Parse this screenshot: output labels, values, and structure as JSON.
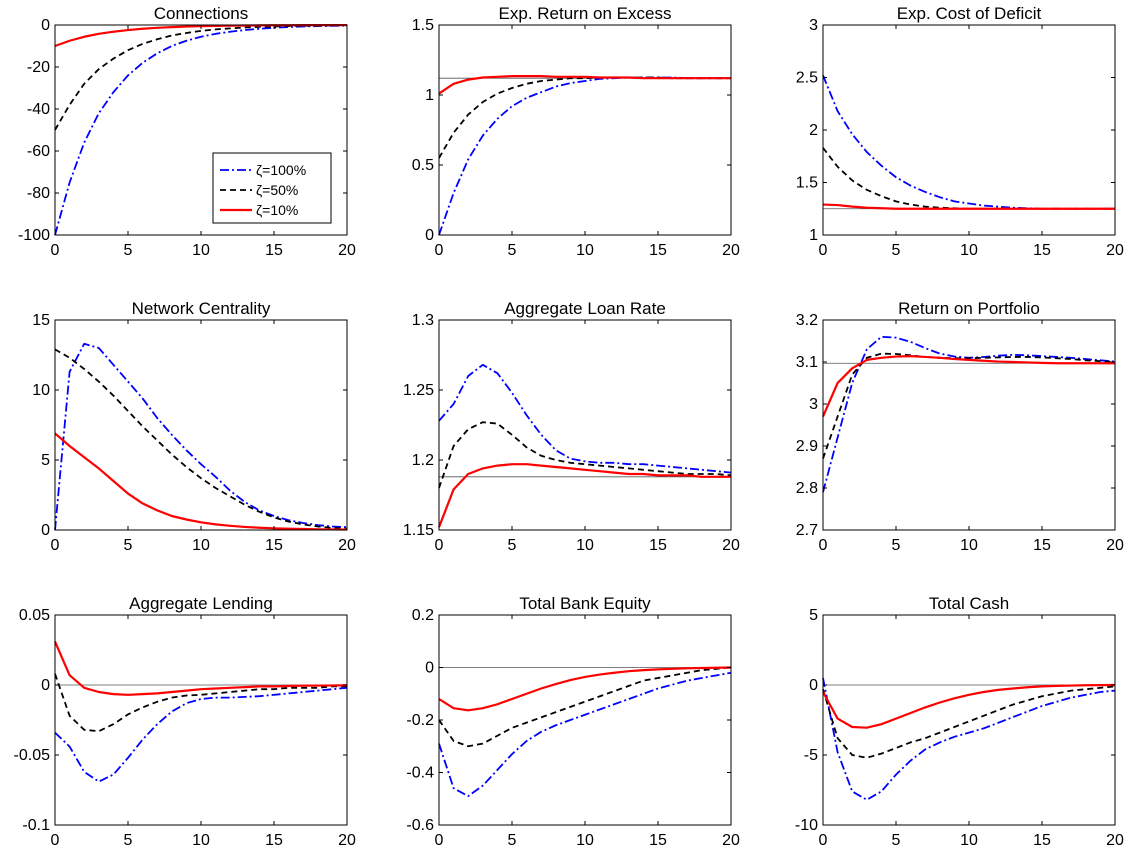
{
  "legend": {
    "entries": [
      {
        "label": "ζ=100%",
        "color": "#0000ff",
        "style": "dash-dot"
      },
      {
        "label": "ζ=50%",
        "color": "#000000",
        "style": "dashed"
      },
      {
        "label": "ζ=10%",
        "color": "#ff0000",
        "style": "solid"
      }
    ]
  },
  "chart_data": [
    {
      "type": "line",
      "title": "Connections",
      "x": [
        0,
        1,
        2,
        3,
        4,
        5,
        6,
        7,
        8,
        9,
        10,
        11,
        12,
        13,
        14,
        15,
        16,
        17,
        18,
        19,
        20
      ],
      "xlim": [
        0,
        20
      ],
      "ylim": [
        -100,
        0
      ],
      "xticks": [
        0,
        5,
        10,
        15,
        20
      ],
      "yticks": [
        -100,
        -80,
        -60,
        -40,
        -20,
        0
      ],
      "baseline": 0,
      "series": [
        {
          "name": "ζ=100%",
          "values": [
            -100,
            -75,
            -56,
            -42,
            -32,
            -24,
            -18,
            -13.5,
            -10,
            -7.5,
            -5.6,
            -4.2,
            -3.2,
            -2.4,
            -1.8,
            -1.3,
            -1.0,
            -0.7,
            -0.5,
            -0.4,
            -0.3
          ]
        },
        {
          "name": "ζ=50%",
          "values": [
            -50,
            -38,
            -28,
            -21,
            -16,
            -12,
            -9,
            -6.8,
            -5,
            -3.8,
            -2.8,
            -2.1,
            -1.6,
            -1.2,
            -0.9,
            -0.7,
            -0.5,
            -0.4,
            -0.3,
            -0.2,
            -0.1
          ]
        },
        {
          "name": "ζ=10%",
          "values": [
            -10,
            -7.5,
            -5.6,
            -4.2,
            -3.2,
            -2.4,
            -1.8,
            -1.35,
            -1,
            -0.75,
            -0.56,
            -0.42,
            -0.32,
            -0.24,
            -0.18,
            -0.13,
            -0.1,
            -0.07,
            -0.05,
            -0.04,
            -0.03
          ]
        }
      ]
    },
    {
      "type": "line",
      "title": "Exp. Return on Excess",
      "x": [
        0,
        1,
        2,
        3,
        4,
        5,
        6,
        7,
        8,
        9,
        10,
        11,
        12,
        13,
        14,
        15,
        16,
        17,
        18,
        19,
        20
      ],
      "xlim": [
        0,
        20
      ],
      "ylim": [
        0,
        1.5
      ],
      "xticks": [
        0,
        5,
        10,
        15,
        20
      ],
      "yticks": [
        0,
        0.5,
        1,
        1.5
      ],
      "baseline": 1.12,
      "series": [
        {
          "name": "ζ=100%",
          "values": [
            0,
            0.3,
            0.54,
            0.71,
            0.83,
            0.92,
            0.98,
            1.02,
            1.06,
            1.085,
            1.1,
            1.115,
            1.12,
            1.125,
            1.125,
            1.125,
            1.125,
            1.12,
            1.12,
            1.12,
            1.12
          ]
        },
        {
          "name": "ζ=50%",
          "values": [
            0.55,
            0.73,
            0.86,
            0.95,
            1.01,
            1.05,
            1.08,
            1.1,
            1.11,
            1.12,
            1.12,
            1.125,
            1.125,
            1.125,
            1.125,
            1.125,
            1.12,
            1.12,
            1.12,
            1.12,
            1.12
          ]
        },
        {
          "name": "ζ=10%",
          "values": [
            1.01,
            1.08,
            1.11,
            1.125,
            1.13,
            1.135,
            1.135,
            1.135,
            1.13,
            1.13,
            1.13,
            1.125,
            1.125,
            1.125,
            1.12,
            1.12,
            1.12,
            1.12,
            1.12,
            1.12,
            1.12
          ]
        }
      ]
    },
    {
      "type": "line",
      "title": "Exp. Cost of Deficit",
      "x": [
        0,
        1,
        2,
        3,
        4,
        5,
        6,
        7,
        8,
        9,
        10,
        11,
        12,
        13,
        14,
        15,
        16,
        17,
        18,
        19,
        20
      ],
      "xlim": [
        0,
        20
      ],
      "ylim": [
        1,
        3
      ],
      "xticks": [
        0,
        5,
        10,
        15,
        20
      ],
      "yticks": [
        1,
        1.5,
        2,
        2.5,
        3
      ],
      "baseline": 1.25,
      "series": [
        {
          "name": "ζ=100%",
          "values": [
            2.52,
            2.18,
            1.96,
            1.79,
            1.66,
            1.55,
            1.47,
            1.41,
            1.36,
            1.32,
            1.3,
            1.28,
            1.27,
            1.26,
            1.255,
            1.25,
            1.25,
            1.25,
            1.25,
            1.25,
            1.25
          ]
        },
        {
          "name": "ζ=50%",
          "values": [
            1.83,
            1.65,
            1.52,
            1.43,
            1.37,
            1.32,
            1.29,
            1.27,
            1.26,
            1.255,
            1.25,
            1.25,
            1.25,
            1.25,
            1.25,
            1.25,
            1.25,
            1.25,
            1.25,
            1.25,
            1.25
          ]
        },
        {
          "name": "ζ=10%",
          "values": [
            1.29,
            1.285,
            1.27,
            1.26,
            1.255,
            1.25,
            1.25,
            1.25,
            1.25,
            1.25,
            1.25,
            1.25,
            1.25,
            1.25,
            1.25,
            1.25,
            1.25,
            1.25,
            1.25,
            1.25,
            1.25
          ]
        }
      ]
    },
    {
      "type": "line",
      "title": "Network Centrality",
      "x": [
        0,
        1,
        2,
        3,
        4,
        5,
        6,
        7,
        8,
        9,
        10,
        11,
        12,
        13,
        14,
        15,
        16,
        17,
        18,
        19,
        20
      ],
      "xlim": [
        0,
        20
      ],
      "ylim": [
        0,
        15
      ],
      "xticks": [
        0,
        5,
        10,
        15,
        20
      ],
      "yticks": [
        0,
        5,
        10,
        15
      ],
      "baseline": 0,
      "series": [
        {
          "name": "ζ=100%",
          "values": [
            0,
            11.3,
            13.3,
            13.0,
            11.8,
            10.6,
            9.4,
            8.0,
            6.8,
            5.7,
            4.7,
            3.8,
            2.8,
            2.0,
            1.4,
            1.0,
            0.7,
            0.5,
            0.35,
            0.25,
            0.2
          ]
        },
        {
          "name": "ζ=50%",
          "values": [
            12.9,
            12.3,
            11.5,
            10.6,
            9.6,
            8.5,
            7.4,
            6.4,
            5.4,
            4.5,
            3.7,
            3.0,
            2.4,
            1.8,
            1.3,
            0.9,
            0.6,
            0.4,
            0.25,
            0.15,
            0.1
          ]
        },
        {
          "name": "ζ=10%",
          "values": [
            6.9,
            6.0,
            5.2,
            4.4,
            3.5,
            2.6,
            1.9,
            1.4,
            1.0,
            0.75,
            0.55,
            0.4,
            0.3,
            0.22,
            0.16,
            0.12,
            0.09,
            0.07,
            0.05,
            0.04,
            0.03
          ]
        }
      ]
    },
    {
      "type": "line",
      "title": "Aggregate Loan Rate",
      "x": [
        0,
        1,
        2,
        3,
        4,
        5,
        6,
        7,
        8,
        9,
        10,
        11,
        12,
        13,
        14,
        15,
        16,
        17,
        18,
        19,
        20
      ],
      "xlim": [
        0,
        20
      ],
      "ylim": [
        1.15,
        1.3
      ],
      "xticks": [
        0,
        5,
        10,
        15,
        20
      ],
      "yticks": [
        1.15,
        1.2,
        1.25,
        1.3
      ],
      "baseline": 1.188,
      "series": [
        {
          "name": "ζ=100%",
          "values": [
            1.228,
            1.24,
            1.26,
            1.268,
            1.262,
            1.248,
            1.232,
            1.218,
            1.207,
            1.201,
            1.199,
            1.198,
            1.198,
            1.197,
            1.197,
            1.196,
            1.195,
            1.194,
            1.193,
            1.192,
            1.191
          ]
        },
        {
          "name": "ζ=50%",
          "values": [
            1.18,
            1.21,
            1.222,
            1.227,
            1.226,
            1.218,
            1.209,
            1.203,
            1.2,
            1.198,
            1.197,
            1.196,
            1.195,
            1.194,
            1.193,
            1.192,
            1.191,
            1.19,
            1.19,
            1.19,
            1.189
          ]
        },
        {
          "name": "ζ=10%",
          "values": [
            1.152,
            1.179,
            1.19,
            1.194,
            1.196,
            1.197,
            1.197,
            1.196,
            1.195,
            1.194,
            1.193,
            1.192,
            1.191,
            1.19,
            1.19,
            1.189,
            1.189,
            1.189,
            1.188,
            1.188,
            1.188
          ]
        }
      ]
    },
    {
      "type": "line",
      "title": "Return on Portfolio",
      "x": [
        0,
        1,
        2,
        3,
        4,
        5,
        6,
        7,
        8,
        9,
        10,
        11,
        12,
        13,
        14,
        15,
        16,
        17,
        18,
        19,
        20
      ],
      "xlim": [
        0,
        20
      ],
      "ylim": [
        2.7,
        3.2
      ],
      "xticks": [
        0,
        5,
        10,
        15,
        20
      ],
      "yticks": [
        2.7,
        2.8,
        2.9,
        3,
        3.1,
        3.2
      ],
      "baseline": 3.097,
      "series": [
        {
          "name": "ζ=100%",
          "values": [
            2.79,
            2.92,
            3.05,
            3.13,
            3.16,
            3.158,
            3.148,
            3.133,
            3.12,
            3.113,
            3.11,
            3.112,
            3.115,
            3.117,
            3.116,
            3.114,
            3.112,
            3.11,
            3.107,
            3.104,
            3.101
          ]
        },
        {
          "name": "ζ=50%",
          "values": [
            2.87,
            2.97,
            3.07,
            3.11,
            3.12,
            3.119,
            3.116,
            3.112,
            3.11,
            3.109,
            3.109,
            3.11,
            3.111,
            3.112,
            3.112,
            3.111,
            3.109,
            3.107,
            3.104,
            3.102,
            3.1
          ]
        },
        {
          "name": "ζ=10%",
          "values": [
            2.97,
            3.05,
            3.085,
            3.105,
            3.11,
            3.113,
            3.114,
            3.112,
            3.11,
            3.107,
            3.105,
            3.103,
            3.101,
            3.1,
            3.099,
            3.098,
            3.097,
            3.097,
            3.097,
            3.097,
            3.097
          ]
        }
      ]
    },
    {
      "type": "line",
      "title": "Aggregate Lending",
      "x": [
        0,
        1,
        2,
        3,
        4,
        5,
        6,
        7,
        8,
        9,
        10,
        11,
        12,
        13,
        14,
        15,
        16,
        17,
        18,
        19,
        20
      ],
      "xlim": [
        0,
        20
      ],
      "ylim": [
        -0.1,
        0.05
      ],
      "xticks": [
        0,
        5,
        10,
        15,
        20
      ],
      "yticks": [
        -0.1,
        -0.05,
        0,
        0.05
      ],
      "baseline": 0,
      "series": [
        {
          "name": "ζ=100%",
          "values": [
            -0.034,
            -0.044,
            -0.062,
            -0.069,
            -0.064,
            -0.052,
            -0.039,
            -0.028,
            -0.019,
            -0.013,
            -0.01,
            -0.009,
            -0.009,
            -0.0085,
            -0.008,
            -0.007,
            -0.006,
            -0.005,
            -0.004,
            -0.003,
            -0.002
          ]
        },
        {
          "name": "ζ=50%",
          "values": [
            0.008,
            -0.022,
            -0.032,
            -0.033,
            -0.028,
            -0.021,
            -0.016,
            -0.012,
            -0.009,
            -0.0075,
            -0.007,
            -0.006,
            -0.005,
            -0.004,
            -0.003,
            -0.003,
            -0.002,
            -0.002,
            -0.002,
            -0.001,
            -0.001
          ]
        },
        {
          "name": "ζ=10%",
          "values": [
            0.031,
            0.007,
            -0.002,
            -0.005,
            -0.0065,
            -0.007,
            -0.0065,
            -0.006,
            -0.005,
            -0.004,
            -0.003,
            -0.0025,
            -0.002,
            -0.0015,
            -0.001,
            -0.001,
            -0.0007,
            -0.0005,
            -0.0004,
            -0.0003,
            -0.0002
          ]
        }
      ]
    },
    {
      "type": "line",
      "title": "Total Bank Equity",
      "x": [
        0,
        1,
        2,
        3,
        4,
        5,
        6,
        7,
        8,
        9,
        10,
        11,
        12,
        13,
        14,
        15,
        16,
        17,
        18,
        19,
        20
      ],
      "xlim": [
        0,
        20
      ],
      "ylim": [
        -0.6,
        0.2
      ],
      "xticks": [
        0,
        5,
        10,
        15,
        20
      ],
      "yticks": [
        -0.6,
        -0.4,
        -0.2,
        0,
        0.2
      ],
      "baseline": 0,
      "series": [
        {
          "name": "ζ=100%",
          "values": [
            -0.29,
            -0.46,
            -0.49,
            -0.45,
            -0.39,
            -0.33,
            -0.28,
            -0.245,
            -0.22,
            -0.2,
            -0.18,
            -0.16,
            -0.14,
            -0.12,
            -0.1,
            -0.08,
            -0.065,
            -0.05,
            -0.04,
            -0.03,
            -0.02
          ]
        },
        {
          "name": "ζ=50%",
          "values": [
            -0.2,
            -0.28,
            -0.3,
            -0.29,
            -0.26,
            -0.23,
            -0.21,
            -0.19,
            -0.17,
            -0.15,
            -0.13,
            -0.11,
            -0.09,
            -0.07,
            -0.05,
            -0.04,
            -0.03,
            -0.02,
            -0.01,
            -0.005,
            0
          ]
        },
        {
          "name": "ζ=10%",
          "values": [
            -0.12,
            -0.155,
            -0.163,
            -0.155,
            -0.14,
            -0.12,
            -0.1,
            -0.08,
            -0.063,
            -0.048,
            -0.036,
            -0.027,
            -0.02,
            -0.014,
            -0.01,
            -0.007,
            -0.005,
            -0.003,
            -0.002,
            -0.001,
            0
          ]
        }
      ]
    },
    {
      "type": "line",
      "title": "Total Cash",
      "x": [
        0,
        1,
        2,
        3,
        4,
        5,
        6,
        7,
        8,
        9,
        10,
        11,
        12,
        13,
        14,
        15,
        16,
        17,
        18,
        19,
        20
      ],
      "xlim": [
        0,
        20
      ],
      "ylim": [
        -10,
        5
      ],
      "xticks": [
        0,
        5,
        10,
        15,
        20
      ],
      "yticks": [
        -10,
        -5,
        0,
        5
      ],
      "baseline": 0,
      "series": [
        {
          "name": "ζ=100%",
          "values": [
            0.5,
            -4.8,
            -7.6,
            -8.2,
            -7.6,
            -6.4,
            -5.4,
            -4.6,
            -4.1,
            -3.7,
            -3.4,
            -3.1,
            -2.7,
            -2.3,
            -1.9,
            -1.5,
            -1.2,
            -0.9,
            -0.7,
            -0.5,
            -0.4
          ]
        },
        {
          "name": "ζ=50%",
          "values": [
            -0.3,
            -3.8,
            -5.0,
            -5.2,
            -4.9,
            -4.5,
            -4.1,
            -3.8,
            -3.4,
            -3.0,
            -2.6,
            -2.2,
            -1.8,
            -1.4,
            -1.1,
            -0.8,
            -0.6,
            -0.4,
            -0.3,
            -0.2,
            -0.1
          ]
        },
        {
          "name": "ζ=10%",
          "values": [
            -0.5,
            -2.4,
            -3.0,
            -3.05,
            -2.8,
            -2.4,
            -2.0,
            -1.6,
            -1.25,
            -0.95,
            -0.7,
            -0.5,
            -0.35,
            -0.25,
            -0.16,
            -0.1,
            -0.06,
            -0.04,
            -0.02,
            -0.01,
            0
          ]
        }
      ]
    }
  ]
}
